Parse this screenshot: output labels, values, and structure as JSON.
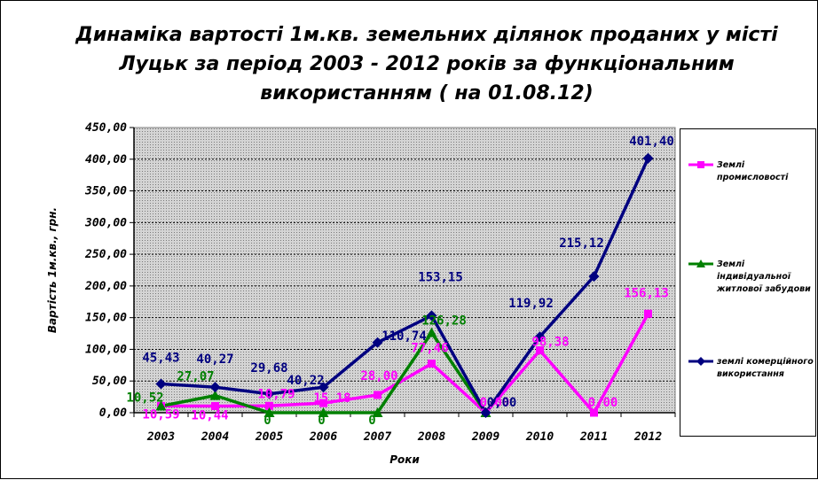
{
  "chart_data": {
    "type": "line",
    "title": "Динаміка вартості 1м.кв. земельних ділянок проданих у місті Луцьк за період 2003 - 2012 років за функціональним використанням ( на 01.08.12)",
    "xlabel": "Роки",
    "ylabel": "Вартість 1м.кв., грн.",
    "ylim": [
      0,
      450
    ],
    "y_ticks": [
      "0,00",
      "50,00",
      "100,00",
      "150,00",
      "200,00",
      "250,00",
      "300,00",
      "350,00",
      "400,00",
      "450,00"
    ],
    "categories": [
      "2003",
      "2004",
      "2005",
      "2006",
      "2007",
      "2008",
      "2009",
      "2010",
      "2011",
      "2012"
    ],
    "grid": "horizontal",
    "legend_position": "right",
    "series": [
      {
        "name": "Землі промисловості",
        "color": "#ff00ff",
        "marker": "square",
        "values": [
          10.59,
          10.44,
          10.79,
          15.18,
          28.0,
          77.46,
          0.0,
          98.38,
          0.0,
          156.13
        ],
        "labels": [
          "10,59",
          "10,44",
          "10,79",
          "15,18",
          "28,00",
          "77,46",
          "0,00",
          "98,38",
          "0,00",
          "156,13"
        ]
      },
      {
        "name": "Землі індивідуальної житлової забудови",
        "color": "#008000",
        "marker": "triangle",
        "values": [
          10.52,
          27.07,
          0,
          0,
          0,
          126.28,
          0,
          null,
          null,
          null
        ],
        "labels": [
          "10,52",
          "27,07",
          "0",
          "0",
          "0",
          "126,28",
          "",
          "",
          "",
          ""
        ]
      },
      {
        "name": "землі комерційного використання",
        "color": "#000080",
        "marker": "diamond",
        "values": [
          45.43,
          40.27,
          29.68,
          40.22,
          110.74,
          153.15,
          0.0,
          119.92,
          215.12,
          401.4
        ],
        "labels": [
          "45,43",
          "40,27",
          "29,68",
          "40,22",
          "110,74",
          "153,15",
          "0,00",
          "119,92",
          "215,12",
          "401,40"
        ]
      }
    ]
  }
}
